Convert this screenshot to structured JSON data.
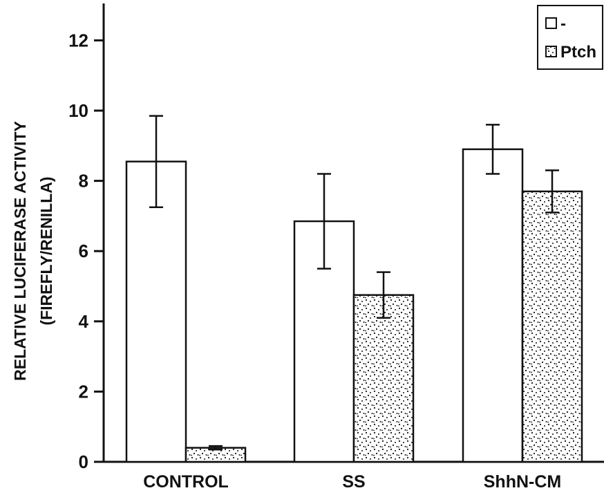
{
  "chart_data": {
    "type": "bar",
    "categories": [
      "CONTROL",
      "SS",
      "ShhN-CM"
    ],
    "series": [
      {
        "name": "-",
        "values": [
          8.55,
          6.85,
          8.9
        ],
        "errors": [
          1.3,
          1.35,
          0.7
        ],
        "fill": "white"
      },
      {
        "name": "Ptch",
        "values": [
          0.4,
          4.75,
          7.7
        ],
        "errors": [
          0.05,
          0.65,
          0.6
        ],
        "fill": "stippled"
      }
    ],
    "ylabel_line1": "RELATIVE LUCIFERASE ACTIVITY",
    "ylabel_line2": "(FIREFLY/RENILLA)",
    "xlabel": "",
    "ylim": [
      0,
      12.5
    ],
    "yticks": [
      0,
      2,
      4,
      6,
      8,
      10,
      12
    ],
    "legend_position": "top-right",
    "grid": false,
    "colors": {
      "ink": "#111111",
      "background": "#ffffff"
    }
  }
}
